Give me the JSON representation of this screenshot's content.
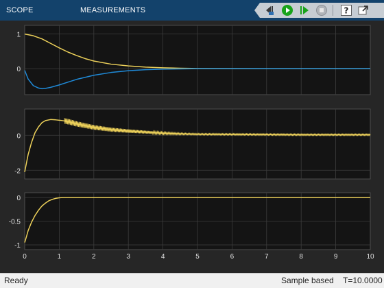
{
  "toolbar": {
    "tabs": [
      {
        "label": "SCOPE"
      },
      {
        "label": "MEASUREMENTS"
      }
    ],
    "buttons": [
      {
        "name": "step-back-button",
        "icon": "step-back-icon"
      },
      {
        "name": "run-button",
        "icon": "run-icon"
      },
      {
        "name": "step-forward-button",
        "icon": "step-forward-icon"
      },
      {
        "name": "stop-button",
        "icon": "stop-icon"
      },
      {
        "name": "help-button",
        "icon": "help-icon"
      },
      {
        "name": "undock-button",
        "icon": "undock-icon"
      }
    ],
    "colors": {
      "bar": "#13426b",
      "run": "#18a31a",
      "strip": "#c7cdd3"
    }
  },
  "status": {
    "ready": "Ready",
    "mode": "Sample based",
    "time": "T=10.0000"
  },
  "chart_data": [
    {
      "type": "line",
      "xlim": [
        0,
        10
      ],
      "ylim": [
        -0.75,
        1.25
      ],
      "yticks": [
        {
          "v": 1,
          "label": "1"
        },
        {
          "v": 0,
          "label": "0"
        }
      ],
      "grid": true,
      "series": [
        {
          "color": "#edd15a",
          "x": [
            0,
            0.25,
            0.5,
            0.75,
            1,
            1.25,
            1.5,
            1.75,
            2,
            2.5,
            3,
            3.5,
            4,
            4.5,
            5,
            6,
            7,
            8,
            9,
            10
          ],
          "y": [
            1,
            0.95,
            0.86,
            0.73,
            0.6,
            0.48,
            0.38,
            0.29,
            0.22,
            0.13,
            0.08,
            0.045,
            0.025,
            0.013,
            0.006,
            0.002,
            0,
            0,
            0,
            0
          ]
        },
        {
          "color": "#1f8ad8",
          "x": [
            0,
            0.1,
            0.25,
            0.4,
            0.5,
            0.6,
            0.75,
            1,
            1.25,
            1.5,
            1.75,
            2,
            2.5,
            3,
            3.5,
            4,
            4.5,
            5,
            6,
            7,
            8,
            9,
            10
          ],
          "y": [
            -0.05,
            -0.3,
            -0.49,
            -0.56,
            -0.58,
            -0.57,
            -0.54,
            -0.47,
            -0.39,
            -0.31,
            -0.25,
            -0.19,
            -0.11,
            -0.06,
            -0.03,
            -0.015,
            -0.007,
            0,
            0,
            0,
            0,
            0,
            0
          ]
        }
      ]
    },
    {
      "type": "line",
      "xlim": [
        0,
        10
      ],
      "ylim": [
        -2.5,
        1.5
      ],
      "yticks": [
        {
          "v": 0,
          "label": "0"
        },
        {
          "v": -2,
          "label": "-2"
        }
      ],
      "grid": true,
      "series": [
        {
          "color": "#edd15a",
          "x": [
            0,
            0.1,
            0.2,
            0.3,
            0.4,
            0.5,
            0.6,
            0.75,
            0.9,
            1.05,
            1.2,
            1.3,
            1.5,
            2,
            2.5,
            3,
            3.5,
            4,
            4.5,
            5,
            6,
            7,
            8,
            9,
            10
          ],
          "y": [
            -2.1,
            -1.1,
            -0.4,
            0.15,
            0.48,
            0.72,
            0.84,
            0.9,
            0.88,
            0.85,
            0.8,
            0.76,
            0.65,
            0.45,
            0.32,
            0.24,
            0.18,
            0.12,
            0.08,
            0.06,
            0.05,
            0.04,
            0.03,
            0.03,
            0.03
          ],
          "ripple": {
            "start": 1.15,
            "amplitude_start": 0.16,
            "amplitude_end": 0.04,
            "cycles": 230
          }
        }
      ]
    },
    {
      "type": "line",
      "xlim": [
        0,
        10
      ],
      "ylim": [
        -1.1,
        0.1
      ],
      "yticks": [
        {
          "v": 0,
          "label": "0"
        },
        {
          "v": -0.5,
          "label": "-0.5"
        },
        {
          "v": -1,
          "label": "-1"
        }
      ],
      "xticks": [
        0,
        1,
        2,
        3,
        4,
        5,
        6,
        7,
        8,
        9,
        10
      ],
      "xticklabels": [
        "0",
        "1",
        "2",
        "3",
        "4",
        "5",
        "6",
        "7",
        "8",
        "9",
        "10"
      ],
      "grid": true,
      "series": [
        {
          "color": "#edd15a",
          "x": [
            0,
            0.05,
            0.1,
            0.2,
            0.3,
            0.4,
            0.5,
            0.6,
            0.7,
            0.8,
            0.9,
            1,
            1.1,
            1.2,
            2,
            3,
            4,
            5,
            6,
            7,
            8,
            9,
            10
          ],
          "y": [
            -0.95,
            -0.83,
            -0.7,
            -0.52,
            -0.38,
            -0.27,
            -0.18,
            -0.12,
            -0.07,
            -0.04,
            -0.02,
            -0.008,
            -0.002,
            0,
            0,
            0,
            0,
            0,
            0,
            0,
            0,
            0,
            0
          ]
        }
      ]
    }
  ]
}
